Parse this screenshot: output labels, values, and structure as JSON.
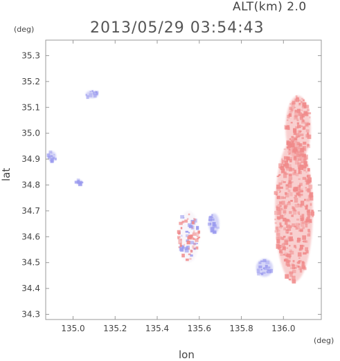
{
  "header": {
    "altitude_label": "ALT(km) 2.0",
    "timestamp": "2013/05/29 03:54:43"
  },
  "axes": {
    "y_unit": "(deg)",
    "x_unit": "(deg)",
    "xlabel": "lon",
    "ylabel": "lat"
  },
  "colors": {
    "positive": "#f08a8a",
    "negative": "#9a9aee",
    "axis": "#999999"
  },
  "chart_data": {
    "type": "heatmap",
    "title": "2013/05/29 03:54:43",
    "xlabel": "lon",
    "ylabel": "lat",
    "xlim": [
      134.87,
      136.18
    ],
    "ylim": [
      34.28,
      35.36
    ],
    "x_ticks": [
      "135.0",
      "135.2",
      "135.4",
      "135.6",
      "135.8",
      "136.0"
    ],
    "y_ticks": [
      "35.3",
      "35.2",
      "35.1",
      "35.0",
      "34.9",
      "34.8",
      "34.7",
      "34.6",
      "34.5",
      "34.4",
      "34.3"
    ],
    "grid": false,
    "regions": [
      {
        "name": "east-coast-positive-band",
        "sign": "positive",
        "lon": 136.05,
        "lat": 34.7,
        "lon_extent": 0.18,
        "lat_extent": 0.55
      },
      {
        "name": "north-east-positive-plume",
        "sign": "positive",
        "lon": 136.07,
        "lat": 35.02,
        "lon_extent": 0.12,
        "lat_extent": 0.25
      },
      {
        "name": "south-east-negative-patch",
        "sign": "negative",
        "lon": 135.91,
        "lat": 34.48,
        "lon_extent": 0.08,
        "lat_extent": 0.07
      },
      {
        "name": "central-negative-cell",
        "sign": "negative",
        "lon": 135.67,
        "lat": 34.65,
        "lon_extent": 0.05,
        "lat_extent": 0.08
      },
      {
        "name": "central-mixed-echoes",
        "sign": "mixed",
        "lon": 135.55,
        "lat": 34.6,
        "lon_extent": 0.1,
        "lat_extent": 0.2
      },
      {
        "name": "north-west-negative-cluster",
        "sign": "negative",
        "lon": 135.09,
        "lat": 35.15,
        "lon_extent": 0.06,
        "lat_extent": 0.03
      },
      {
        "name": "west-edge-negative-cluster",
        "sign": "negative",
        "lon": 134.9,
        "lat": 34.91,
        "lon_extent": 0.04,
        "lat_extent": 0.04
      },
      {
        "name": "west-negative-small",
        "sign": "negative",
        "lon": 135.03,
        "lat": 34.81,
        "lon_extent": 0.03,
        "lat_extent": 0.02
      }
    ]
  }
}
